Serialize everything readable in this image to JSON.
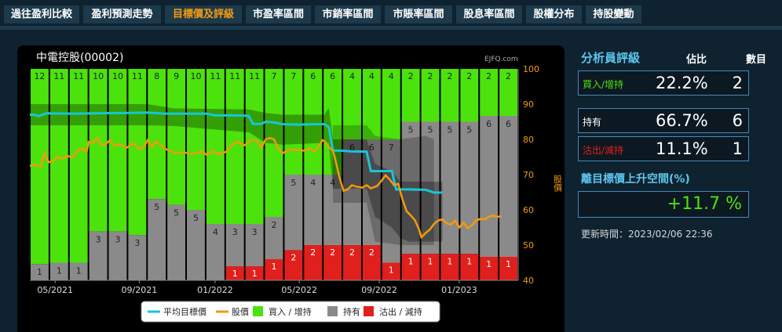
{
  "tabs": [
    {
      "label": "過往盈利比較",
      "active": false
    },
    {
      "label": "盈利預測走勢",
      "active": false
    },
    {
      "label": "目標價及評級",
      "active": true
    },
    {
      "label": "市盈率區間",
      "active": false
    },
    {
      "label": "市銷率區間",
      "active": false
    },
    {
      "label": "市賬率區間",
      "active": false
    },
    {
      "label": "股息率區間",
      "active": false
    },
    {
      "label": "股權分布",
      "active": false
    },
    {
      "label": "持股變動",
      "active": false
    }
  ],
  "chart_data": {
    "type": "bar",
    "title": "中電控股(00002)",
    "watermark": "EJFQ.com",
    "ylabel": "股價",
    "ylim": [
      40,
      100
    ],
    "yticks": [
      40,
      50,
      60,
      70,
      80,
      90,
      100
    ],
    "xticks": [
      "05/2021",
      "09/2021",
      "01/2022",
      "05/2022",
      "09/2022",
      "01/2023"
    ],
    "colors": {
      "buy": "#4be30b",
      "hold": "#8b8a8a",
      "sell": "#e0201c",
      "target": "#17c6d8",
      "price": "#f39a0e"
    },
    "periods": [
      {
        "buy": 12,
        "hold": 1,
        "sell": 0
      },
      {
        "buy": 11,
        "hold": 1,
        "sell": 0
      },
      {
        "buy": 11,
        "hold": 1,
        "sell": 0
      },
      {
        "buy": 10,
        "hold": 3,
        "sell": 0
      },
      {
        "buy": 10,
        "hold": 3,
        "sell": 0
      },
      {
        "buy": 11,
        "hold": 3,
        "sell": 0
      },
      {
        "buy": 8,
        "hold": 5,
        "sell": 0
      },
      {
        "buy": 9,
        "hold": 5,
        "sell": 0
      },
      {
        "buy": 10,
        "hold": 5,
        "sell": 0
      },
      {
        "buy": 11,
        "hold": 4,
        "sell": 0
      },
      {
        "buy": 11,
        "hold": 3,
        "sell": 1
      },
      {
        "buy": 11,
        "hold": 3,
        "sell": 1
      },
      {
        "buy": 7,
        "hold": 2,
        "sell": 1
      },
      {
        "buy": 7,
        "hold": 5,
        "sell": 2
      },
      {
        "buy": 6,
        "hold": 4,
        "sell": 2
      },
      {
        "buy": 6,
        "hold": 4,
        "sell": 2
      },
      {
        "buy": 4,
        "hold": 6,
        "sell": 2
      },
      {
        "buy": 4,
        "hold": 6,
        "sell": 2
      },
      {
        "buy": 4,
        "hold": 7,
        "sell": 1
      },
      {
        "buy": 2,
        "hold": 5,
        "sell": 1
      },
      {
        "buy": 2,
        "hold": 5,
        "sell": 1
      },
      {
        "buy": 2,
        "hold": 5,
        "sell": 1
      },
      {
        "buy": 2,
        "hold": 5,
        "sell": 1
      },
      {
        "buy": 2,
        "hold": 6,
        "sell": 1
      },
      {
        "buy": 2,
        "hold": 6,
        "sell": 1
      }
    ],
    "target_line": [
      [
        0.0,
        87
      ],
      [
        0.01,
        87
      ],
      [
        0.02,
        86.6
      ],
      [
        0.04,
        87.4
      ],
      [
        0.1,
        87.3
      ],
      [
        0.16,
        87.4
      ],
      [
        0.24,
        87.5
      ],
      [
        0.28,
        87.6
      ],
      [
        0.32,
        87.3
      ],
      [
        0.36,
        87.3
      ],
      [
        0.4,
        87.3
      ],
      [
        0.42,
        87.3
      ],
      [
        0.44,
        86.8
      ],
      [
        0.48,
        86.8
      ],
      [
        0.52,
        86.7
      ],
      [
        0.53,
        84.4
      ],
      [
        0.55,
        84.4
      ],
      [
        0.56,
        85
      ],
      [
        0.58,
        84.8
      ],
      [
        0.6,
        84.3
      ],
      [
        0.64,
        84.2
      ],
      [
        0.68,
        84.3
      ],
      [
        0.7,
        84.3
      ],
      [
        0.71,
        83.5
      ],
      [
        0.72,
        76.8
      ],
      [
        0.74,
        76.8
      ],
      [
        0.76,
        76.6
      ],
      [
        0.8,
        76.5
      ],
      [
        0.81,
        71
      ],
      [
        0.86,
        71
      ],
      [
        0.87,
        65.8
      ],
      [
        0.9,
        65.8
      ],
      [
        0.94,
        65.7
      ],
      [
        0.96,
        64.9
      ],
      [
        0.98,
        64.9
      ]
    ],
    "target_band_upper": [
      [
        0.0,
        90
      ],
      [
        0.28,
        90
      ],
      [
        0.34,
        88.8
      ],
      [
        0.52,
        88.5
      ],
      [
        0.56,
        87.5
      ],
      [
        0.6,
        87
      ],
      [
        0.7,
        87
      ],
      [
        0.71,
        89
      ],
      [
        0.72,
        80
      ],
      [
        0.78,
        80
      ],
      [
        0.8,
        80
      ],
      [
        0.82,
        73
      ],
      [
        0.86,
        71
      ],
      [
        0.88,
        68
      ],
      [
        0.9,
        68
      ],
      [
        0.94,
        68
      ],
      [
        0.96,
        68
      ],
      [
        0.98,
        68
      ]
    ],
    "target_band_lower": [
      [
        0.0,
        84
      ],
      [
        0.28,
        84
      ],
      [
        0.34,
        83.8
      ],
      [
        0.52,
        82
      ],
      [
        0.56,
        79
      ],
      [
        0.6,
        78.5
      ],
      [
        0.7,
        79
      ],
      [
        0.71,
        79
      ],
      [
        0.72,
        66
      ],
      [
        0.78,
        66
      ],
      [
        0.8,
        66
      ],
      [
        0.82,
        58
      ],
      [
        0.86,
        55
      ],
      [
        0.88,
        52
      ],
      [
        0.9,
        51
      ],
      [
        0.94,
        51
      ],
      [
        0.96,
        51
      ],
      [
        0.98,
        51
      ]
    ],
    "target_band_outer": [
      [
        0.72,
        84
      ],
      [
        0.8,
        84
      ],
      [
        0.82,
        81
      ],
      [
        0.88,
        80
      ],
      [
        0.94,
        81
      ],
      [
        0.96,
        80
      ]
    ],
    "target_band_outer_lower": [
      [
        0.72,
        62
      ],
      [
        0.8,
        62
      ],
      [
        0.82,
        51
      ],
      [
        0.88,
        50
      ],
      [
        0.94,
        50
      ],
      [
        0.96,
        50
      ]
    ],
    "price_line": [
      [
        0.0,
        72.5
      ],
      [
        0.015,
        72.8
      ],
      [
        0.025,
        72.2
      ],
      [
        0.035,
        76
      ],
      [
        0.045,
        73.5
      ],
      [
        0.055,
        73.8
      ],
      [
        0.065,
        75
      ],
      [
        0.08,
        74.6
      ],
      [
        0.09,
        75.3
      ],
      [
        0.1,
        74.8
      ],
      [
        0.115,
        77
      ],
      [
        0.125,
        77.4
      ],
      [
        0.135,
        76.5
      ],
      [
        0.14,
        79.3
      ],
      [
        0.15,
        79
      ],
      [
        0.16,
        80.4
      ],
      [
        0.17,
        78.4
      ],
      [
        0.18,
        78.6
      ],
      [
        0.19,
        79.8
      ],
      [
        0.2,
        78.2
      ],
      [
        0.215,
        78.6
      ],
      [
        0.23,
        77.6
      ],
      [
        0.245,
        78.9
      ],
      [
        0.26,
        77.4
      ],
      [
        0.27,
        77.6
      ],
      [
        0.28,
        79.8
      ],
      [
        0.29,
        77.8
      ],
      [
        0.3,
        79.5
      ],
      [
        0.31,
        78.4
      ],
      [
        0.32,
        77.4
      ],
      [
        0.335,
        76.6
      ],
      [
        0.35,
        76
      ],
      [
        0.365,
        76.4
      ],
      [
        0.38,
        75.8
      ],
      [
        0.395,
        76.1
      ],
      [
        0.41,
        76.6
      ],
      [
        0.42,
        75.6
      ],
      [
        0.435,
        76.7
      ],
      [
        0.45,
        75.8
      ],
      [
        0.465,
        76.4
      ],
      [
        0.48,
        78.4
      ],
      [
        0.495,
        79.4
      ],
      [
        0.51,
        78.3
      ],
      [
        0.525,
        79.8
      ],
      [
        0.54,
        79.6
      ],
      [
        0.55,
        77.6
      ],
      [
        0.56,
        80
      ],
      [
        0.57,
        80.4
      ],
      [
        0.58,
        80
      ],
      [
        0.59,
        77.4
      ],
      [
        0.6,
        76
      ],
      [
        0.61,
        76.8
      ],
      [
        0.62,
        77.1
      ],
      [
        0.635,
        77
      ],
      [
        0.65,
        76.8
      ],
      [
        0.665,
        77.4
      ],
      [
        0.675,
        76.6
      ],
      [
        0.685,
        77.8
      ],
      [
        0.695,
        79.8
      ],
      [
        0.7,
        79.5
      ],
      [
        0.71,
        77.8
      ],
      [
        0.72,
        76.8
      ],
      [
        0.725,
        74.6
      ],
      [
        0.735,
        69.4
      ],
      [
        0.745,
        65.4
      ],
      [
        0.755,
        65.8
      ],
      [
        0.765,
        67
      ],
      [
        0.775,
        66.6
      ],
      [
        0.79,
        66.3
      ],
      [
        0.8,
        67
      ],
      [
        0.81,
        66.1
      ],
      [
        0.825,
        66.8
      ],
      [
        0.835,
        68.2
      ],
      [
        0.845,
        69.8
      ],
      [
        0.855,
        68.6
      ],
      [
        0.865,
        67
      ],
      [
        0.875,
        67.4
      ],
      [
        0.885,
        63
      ],
      [
        0.895,
        59.6
      ],
      [
        0.905,
        58.4
      ],
      [
        0.915,
        57
      ],
      [
        0.925,
        54.3
      ],
      [
        0.93,
        52.2
      ],
      [
        0.94,
        53.4
      ],
      [
        0.95,
        54.4
      ],
      [
        0.96,
        56
      ],
      [
        0.97,
        57
      ],
      [
        0.98,
        57.3
      ],
      [
        0.99,
        56.2
      ],
      [
        1.0,
        55.8
      ],
      [
        1.01,
        57
      ],
      [
        1.02,
        55
      ],
      [
        1.03,
        56.4
      ],
      [
        1.04,
        54.8
      ],
      [
        1.05,
        55.6
      ],
      [
        1.06,
        57
      ],
      [
        1.07,
        57.4
      ],
      [
        1.08,
        57.3
      ],
      [
        1.09,
        58
      ],
      [
        1.1,
        58.4
      ],
      [
        1.11,
        58
      ],
      [
        1.12,
        58.2
      ]
    ],
    "legend": [
      {
        "key": "target",
        "label": "平均目標價",
        "kind": "line"
      },
      {
        "key": "price",
        "label": "股價",
        "kind": "line"
      },
      {
        "key": "buy",
        "label": "買入 / 增持",
        "kind": "box"
      },
      {
        "key": "hold",
        "label": "持有",
        "kind": "box"
      },
      {
        "key": "sell",
        "label": "沽出 / 減持",
        "kind": "box"
      }
    ]
  },
  "analyst": {
    "title": "分析員評級",
    "col_ratio": "佔比",
    "col_count": "數目",
    "rows": [
      {
        "label": "買入/增持",
        "pct": "22.2%",
        "count": "2",
        "color": "#4be30b"
      },
      {
        "label": "持有",
        "pct": "66.7%",
        "count": "6",
        "color": "#ffffff"
      },
      {
        "label": "沽出/減持",
        "pct": "11.1%",
        "count": "1",
        "color": "#e0201c"
      }
    ],
    "upside_title": "離目標價上升空間(%)",
    "upside_value": "+11.7 %",
    "updated": "更新時間：2023/02/06 22:36"
  }
}
